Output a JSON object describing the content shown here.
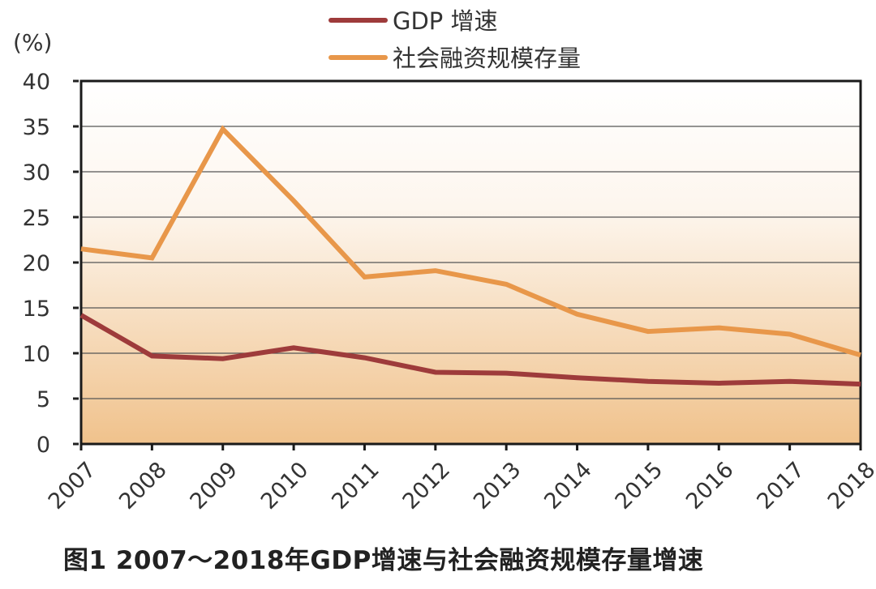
{
  "chart_data": {
    "type": "line",
    "title": "图1  2007～2018年GDP增速与社会融资规模存量增速",
    "xlabel": "",
    "ylabel": "(%)",
    "categories": [
      "2007",
      "2008",
      "2009",
      "2010",
      "2011",
      "2012",
      "2013",
      "2014",
      "2015",
      "2016",
      "2017",
      "2018"
    ],
    "ylim": [
      0,
      40
    ],
    "yticks": [
      0,
      5,
      10,
      15,
      20,
      25,
      30,
      35,
      40
    ],
    "grid": true,
    "legend_position": "top",
    "series": [
      {
        "name": "GDP 增速",
        "color": "#9e3b3b",
        "values": [
          14.2,
          9.7,
          9.4,
          10.6,
          9.5,
          7.9,
          7.8,
          7.3,
          6.9,
          6.7,
          6.9,
          6.6
        ]
      },
      {
        "name": "社会融资规模存量",
        "color": "#e8974a",
        "values": [
          21.5,
          20.5,
          34.7,
          26.8,
          18.4,
          19.1,
          17.6,
          14.3,
          12.4,
          12.8,
          12.1,
          9.8
        ]
      }
    ],
    "background_gradient": {
      "top": "#ffffff",
      "bottom": "#f0c28c"
    }
  },
  "caption": "图1  2007～2018年GDP增速与社会融资规模存量增速"
}
